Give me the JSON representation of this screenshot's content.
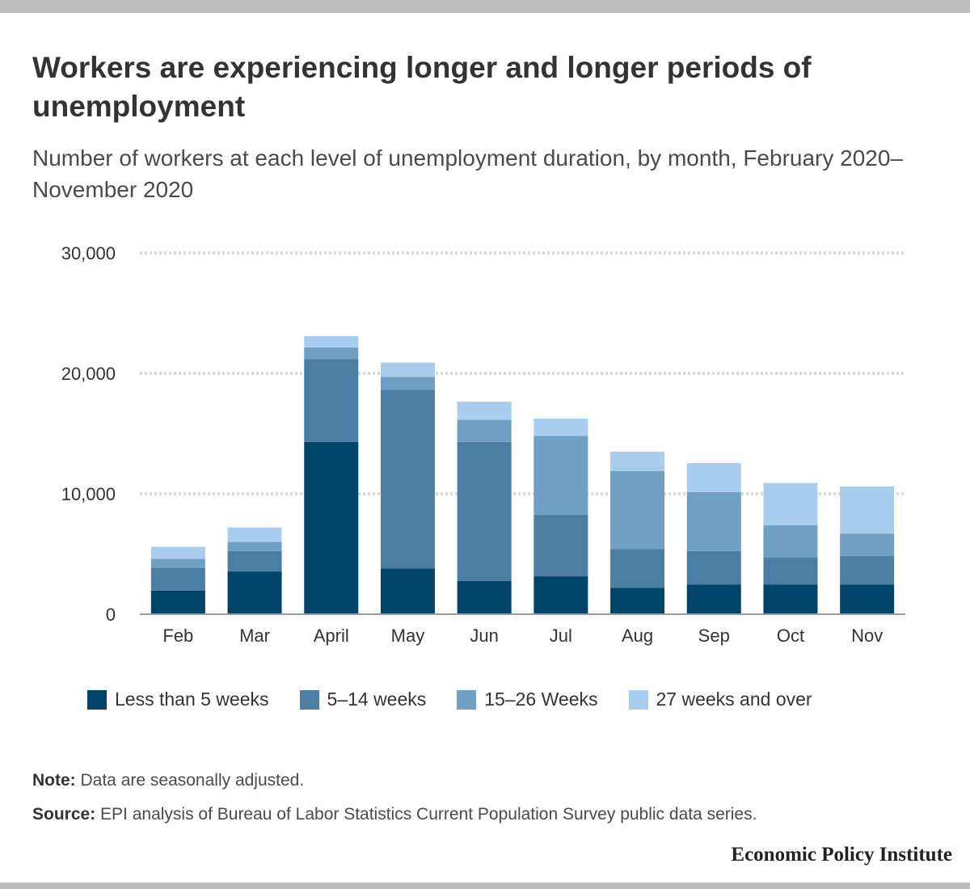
{
  "title": "Workers are experiencing longer and longer periods of unemployment",
  "subtitle": "Number of workers at each level of unemployment duration, by month, February 2020–November 2020",
  "note": {
    "label": "Note:",
    "text": " Data are seasonally adjusted."
  },
  "source": {
    "label": "Source:",
    "text": " EPI analysis of Bureau of Labor Statistics Current Population Survey public data series."
  },
  "brand": "Economic Policy Institute",
  "chart_data": {
    "type": "bar",
    "stacked": true,
    "categories": [
      "Feb",
      "Mar",
      "April",
      "May",
      "Jun",
      "Jul",
      "Aug",
      "Sep",
      "Oct",
      "Nov"
    ],
    "series": [
      {
        "name": "Less than 5 weeks",
        "color": "#00446a",
        "values": [
          1950,
          3550,
          14300,
          3800,
          2750,
          3150,
          2200,
          2450,
          2450,
          2450
        ]
      },
      {
        "name": "5–14 weeks",
        "color": "#4a7ea3",
        "values": [
          1900,
          1700,
          6900,
          14850,
          11550,
          5100,
          3200,
          2800,
          2250,
          2400
        ]
      },
      {
        "name": "15–26 Weeks",
        "color": "#6f9fc3",
        "values": [
          750,
          750,
          950,
          1050,
          1850,
          6550,
          6500,
          4900,
          2700,
          1850
        ]
      },
      {
        "name": "27 weeks and over",
        "color": "#a9cdee",
        "values": [
          1000,
          1200,
          950,
          1200,
          1500,
          1450,
          1600,
          2400,
          3500,
          3900
        ]
      }
    ],
    "ylim": [
      0,
      30000
    ],
    "yticks": [
      0,
      10000,
      20000,
      30000
    ],
    "ytick_labels": [
      "0",
      "10,000",
      "20,000",
      "30,000"
    ],
    "xlabel": "",
    "ylabel": "",
    "grid": "horizontal dotted",
    "legend": "bottom"
  }
}
